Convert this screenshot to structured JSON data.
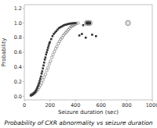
{
  "chart_data": {
    "type": "scatter",
    "title": "Probability of CXR abnormality vs seizure duration",
    "xlabel": "Seizure duration (sec)",
    "ylabel": "Probability",
    "xlim": [
      0,
      1000
    ],
    "ylim": [
      -0.05,
      1.25
    ],
    "xticks": [
      0,
      200,
      400,
      600,
      800,
      1000
    ],
    "yticks": [
      {
        "value": 0.0,
        "label": "0.0"
      },
      0.2,
      0.4,
      0.6,
      0.8,
      {
        "value": 1.0,
        "label": "1.0"
      },
      1.2
    ],
    "grid": false,
    "series": [
      {
        "marker": "circle",
        "color": "#666666",
        "x": [
          55,
          65,
          75,
          85,
          95,
          105,
          115,
          125,
          135,
          145,
          155,
          165,
          175,
          185,
          195,
          205,
          215,
          225,
          235,
          245,
          255,
          265,
          275,
          285,
          295,
          305,
          315,
          325,
          335,
          345,
          355,
          365,
          375,
          385,
          395,
          405,
          420
        ],
        "values": [
          0.02,
          0.03,
          0.04,
          0.05,
          0.07,
          0.09,
          0.12,
          0.15,
          0.18,
          0.22,
          0.26,
          0.3,
          0.35,
          0.39,
          0.44,
          0.48,
          0.53,
          0.57,
          0.61,
          0.65,
          0.68,
          0.72,
          0.75,
          0.78,
          0.8,
          0.83,
          0.85,
          0.87,
          0.89,
          0.91,
          0.93,
          0.95,
          0.96,
          0.97,
          0.98,
          0.99,
          1.0
        ]
      },
      {
        "marker": "square",
        "color": "#333333",
        "x": [
          50,
          55,
          60,
          65,
          70,
          75,
          80,
          85,
          90,
          95,
          100,
          105,
          110,
          115,
          120,
          125,
          130,
          135,
          140,
          145,
          150,
          155,
          160,
          165,
          170,
          175,
          180,
          185,
          190,
          195,
          200,
          210,
          220,
          230,
          240,
          250,
          260,
          270,
          280,
          290,
          300,
          310,
          320,
          330,
          340,
          350,
          360,
          370,
          380,
          390,
          400
        ],
        "values": [
          0.01,
          0.015,
          0.02,
          0.025,
          0.03,
          0.04,
          0.05,
          0.06,
          0.075,
          0.09,
          0.11,
          0.13,
          0.155,
          0.18,
          0.21,
          0.24,
          0.27,
          0.31,
          0.34,
          0.38,
          0.42,
          0.46,
          0.5,
          0.53,
          0.57,
          0.6,
          0.63,
          0.66,
          0.69,
          0.72,
          0.74,
          0.78,
          0.82,
          0.85,
          0.87,
          0.89,
          0.91,
          0.93,
          0.94,
          0.95,
          0.96,
          0.97,
          0.975,
          0.98,
          0.985,
          0.99,
          0.992,
          0.995,
          0.997,
          0.998,
          0.999
        ]
      },
      {
        "marker": "square",
        "color": "#333333",
        "x": [
          430,
          450,
          460,
          480,
          500,
          510,
          530,
          560
        ],
        "values": [
          0.83,
          0.85,
          0.97,
          0.8,
          1.0,
          1.0,
          0.84,
          0.82
        ]
      },
      {
        "marker": "double_circle",
        "color": "#666666",
        "x": [
          490,
          510,
          810
        ],
        "values": [
          1.0,
          1.0,
          1.0
        ]
      },
      {
        "marker": "large_square",
        "color": "#333333",
        "x": [
          490,
          510
        ],
        "values": [
          1.0,
          1.0
        ]
      }
    ]
  }
}
